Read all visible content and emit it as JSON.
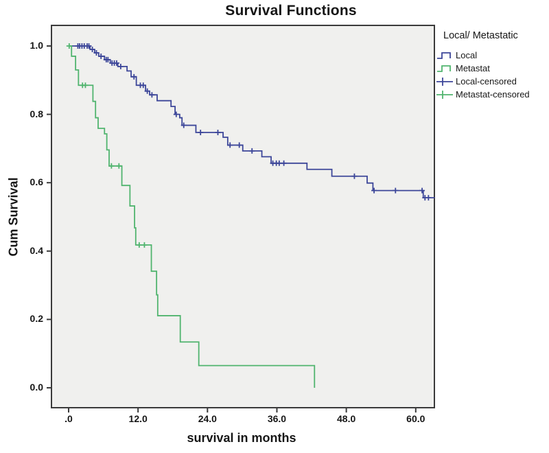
{
  "colors": {
    "local": "#3c4699",
    "metastat": "#50b46e",
    "plot_background": "#f0f0ee",
    "axis": "#3a3a3a"
  },
  "chart_data": {
    "type": "line",
    "subtype": "kaplan-meier-step",
    "title": "Survival Functions",
    "xlabel": "survival in months",
    "ylabel": "Cum Survival",
    "legend_title": "Local/ Metastatic",
    "legend_position": "right",
    "grid": false,
    "xlim": [
      -3.1,
      63.3
    ],
    "ylim": [
      -0.062,
      1.062
    ],
    "x_ticks": [
      0,
      12,
      24,
      36,
      48,
      60
    ],
    "x_tick_labels": [
      ".0",
      "12.0",
      "24.0",
      "36.0",
      "48.0",
      "60.0"
    ],
    "y_ticks": [
      0.0,
      0.2,
      0.4,
      0.6,
      0.8,
      1.0
    ],
    "y_tick_labels": [
      "0.0",
      "0.2",
      "0.4",
      "0.6",
      "0.8",
      "1.0"
    ],
    "legend": [
      {
        "label": "Local",
        "marker": "step",
        "color": "local"
      },
      {
        "label": "Metastat",
        "marker": "step",
        "color": "metastat"
      },
      {
        "label": "Local-censored",
        "marker": "plus",
        "color": "local"
      },
      {
        "label": "Metastat-censored",
        "marker": "plus",
        "color": "metastat"
      }
    ],
    "series": [
      {
        "name": "Local",
        "color": "local",
        "end_t": 63.3,
        "steps": [
          [
            0,
            1.0
          ],
          [
            3.7,
            0.99
          ],
          [
            4.5,
            0.98
          ],
          [
            5.2,
            0.97
          ],
          [
            6.2,
            0.96
          ],
          [
            7.2,
            0.95
          ],
          [
            8.5,
            0.94
          ],
          [
            10.1,
            0.927
          ],
          [
            10.8,
            0.91
          ],
          [
            11.7,
            0.885
          ],
          [
            13.3,
            0.868
          ],
          [
            14.0,
            0.857
          ],
          [
            15.3,
            0.84
          ],
          [
            17.7,
            0.823
          ],
          [
            18.4,
            0.8
          ],
          [
            19.2,
            0.79
          ],
          [
            19.6,
            0.768
          ],
          [
            22.0,
            0.747
          ],
          [
            26.7,
            0.733
          ],
          [
            27.5,
            0.71
          ],
          [
            30.1,
            0.693
          ],
          [
            33.4,
            0.676
          ],
          [
            35.0,
            0.657
          ],
          [
            41.2,
            0.639
          ],
          [
            45.5,
            0.619
          ],
          [
            51.6,
            0.599
          ],
          [
            52.6,
            0.577
          ],
          [
            61.3,
            0.556
          ]
        ],
        "censors": [
          [
            1.6,
            1.0
          ],
          [
            1.9,
            1.0
          ],
          [
            2.3,
            1.0
          ],
          [
            2.7,
            1.0
          ],
          [
            3.2,
            1.0
          ],
          [
            3.5,
            1.0
          ],
          [
            4.1,
            0.99
          ],
          [
            4.8,
            0.98
          ],
          [
            5.6,
            0.97
          ],
          [
            6.5,
            0.96
          ],
          [
            6.8,
            0.96
          ],
          [
            7.5,
            0.95
          ],
          [
            7.9,
            0.95
          ],
          [
            8.3,
            0.95
          ],
          [
            9.0,
            0.94
          ],
          [
            11.3,
            0.91
          ],
          [
            12.4,
            0.885
          ],
          [
            12.9,
            0.885
          ],
          [
            13.6,
            0.868
          ],
          [
            14.4,
            0.857
          ],
          [
            18.6,
            0.8
          ],
          [
            19.9,
            0.768
          ],
          [
            22.8,
            0.747
          ],
          [
            25.8,
            0.747
          ],
          [
            27.9,
            0.71
          ],
          [
            29.5,
            0.71
          ],
          [
            31.7,
            0.693
          ],
          [
            35.3,
            0.657
          ],
          [
            35.9,
            0.657
          ],
          [
            36.4,
            0.657
          ],
          [
            37.2,
            0.657
          ],
          [
            49.4,
            0.619
          ],
          [
            52.8,
            0.577
          ],
          [
            56.5,
            0.577
          ],
          [
            61.1,
            0.577
          ],
          [
            61.6,
            0.556
          ],
          [
            62.2,
            0.556
          ]
        ]
      },
      {
        "name": "Metastat",
        "color": "metastat",
        "end_t": 42.5,
        "steps": [
          [
            0,
            1.0
          ],
          [
            0.5,
            0.97
          ],
          [
            1.2,
            0.93
          ],
          [
            1.7,
            0.885
          ],
          [
            4.2,
            0.838
          ],
          [
            4.65,
            0.79
          ],
          [
            5.1,
            0.759
          ],
          [
            6.2,
            0.743
          ],
          [
            6.6,
            0.696
          ],
          [
            7.0,
            0.649
          ],
          [
            9.2,
            0.592
          ],
          [
            10.6,
            0.532
          ],
          [
            11.4,
            0.468
          ],
          [
            11.6,
            0.418
          ],
          [
            14.3,
            0.341
          ],
          [
            15.2,
            0.272
          ],
          [
            15.4,
            0.211
          ],
          [
            19.3,
            0.134
          ],
          [
            22.5,
            0.065
          ],
          [
            42.5,
            0.0
          ]
        ],
        "censors": [
          [
            0.1,
            1.0
          ],
          [
            2.4,
            0.885
          ],
          [
            2.9,
            0.885
          ],
          [
            7.4,
            0.649
          ],
          [
            8.7,
            0.649
          ],
          [
            12.2,
            0.418
          ],
          [
            13.1,
            0.418
          ]
        ]
      }
    ]
  }
}
